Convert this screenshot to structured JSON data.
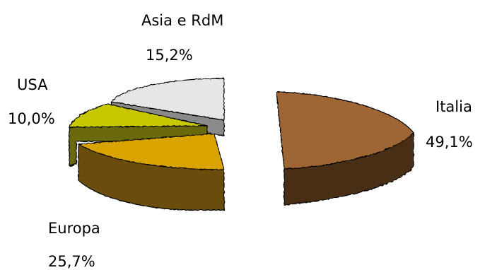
{
  "chart_data": {
    "type": "pie",
    "three_d": true,
    "exploded": true,
    "categories": [
      "Italia",
      "Europa",
      "USA",
      "Asia e RdM"
    ],
    "values": [
      49.1,
      25.7,
      10.0,
      15.2
    ],
    "value_labels": [
      "49,1%",
      "25,7%",
      "10,0%",
      "15,2%"
    ],
    "colors": {
      "Italia": {
        "top": "#9e6535",
        "side": "#4a2e19"
      },
      "Europa": {
        "top": "#d9a300",
        "side": "#6a4e0c"
      },
      "USA": {
        "top": "#c8c800",
        "side": "#6a6a10"
      },
      "Asia e RdM": {
        "top": "#e6e6e6",
        "side": "#8a8a8a"
      }
    },
    "title": "",
    "legend": "none"
  }
}
